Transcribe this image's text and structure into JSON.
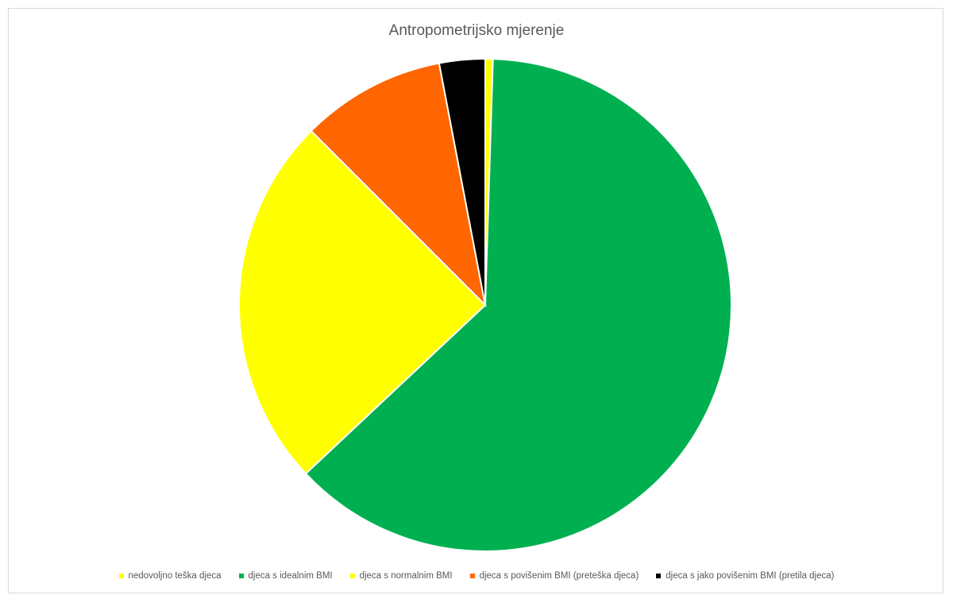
{
  "chart_data": {
    "type": "pie",
    "title": "Antropometrijsko mjerenje",
    "legend_position": "bottom",
    "slices": [
      {
        "name": "nedovoljno teška djeca",
        "value": 0.5,
        "color": "#FFFF00"
      },
      {
        "name": "djeca s idealnim BMI",
        "value": 62.5,
        "color": "#00B050"
      },
      {
        "name": "djeca s normalnim BMI",
        "value": 24.5,
        "color": "#FFFF00"
      },
      {
        "name": "djeca s povišenim BMI (preteška djeca)",
        "value": 9.5,
        "color": "#FF6600"
      },
      {
        "name": "djeca s jako povišenim BMI (pretila djeca)",
        "value": 3.0,
        "color": "#000000"
      }
    ]
  }
}
